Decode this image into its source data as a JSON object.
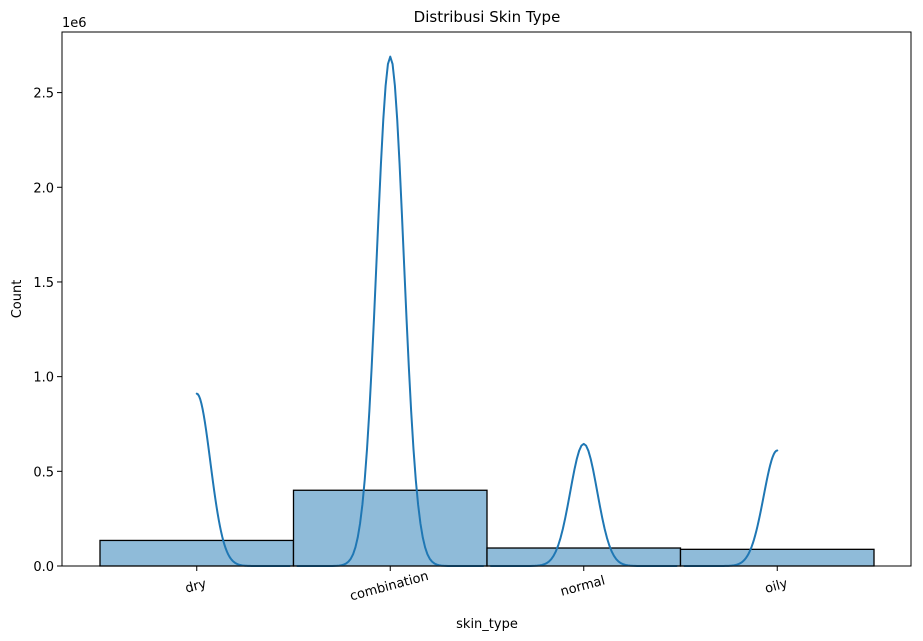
{
  "chart_data": {
    "type": "bar",
    "title": "Distribusi Skin Type",
    "xlabel": "skin_type",
    "ylabel": "Count",
    "y_offset_label": "1e6",
    "categories": [
      "dry",
      "combination",
      "normal",
      "oily"
    ],
    "values": [
      135000,
      400000,
      95000,
      88000
    ],
    "ylim": [
      0,
      2820000
    ],
    "yticks": [
      0,
      500000,
      1000000,
      1500000,
      2000000,
      2500000
    ],
    "ytick_labels": [
      "0.0",
      "0.5",
      "1.0",
      "1.5",
      "2.0",
      "2.5"
    ],
    "xtick_rotation_deg": -15,
    "bar_color": "#8fbbd9",
    "kde_color": "#1f77b4",
    "kde": [
      {
        "category": "dry",
        "peak": 910000,
        "center_offset": 0.0,
        "width": 0.07,
        "start_offset": 0.0,
        "end_offset": 0.48
      },
      {
        "category": "combination",
        "peak": 2690000,
        "center_offset": 0.0,
        "width": 0.07,
        "start_offset": -0.48,
        "end_offset": 0.48
      },
      {
        "category": "normal",
        "peak": 645000,
        "center_offset": 0.0,
        "width": 0.07,
        "start_offset": -0.48,
        "end_offset": 0.48
      },
      {
        "category": "oily",
        "peak": 610000,
        "center_offset": 0.0,
        "width": 0.07,
        "start_offset": -0.48,
        "end_offset": 0.0
      }
    ],
    "grid": false,
    "legend": "none"
  }
}
